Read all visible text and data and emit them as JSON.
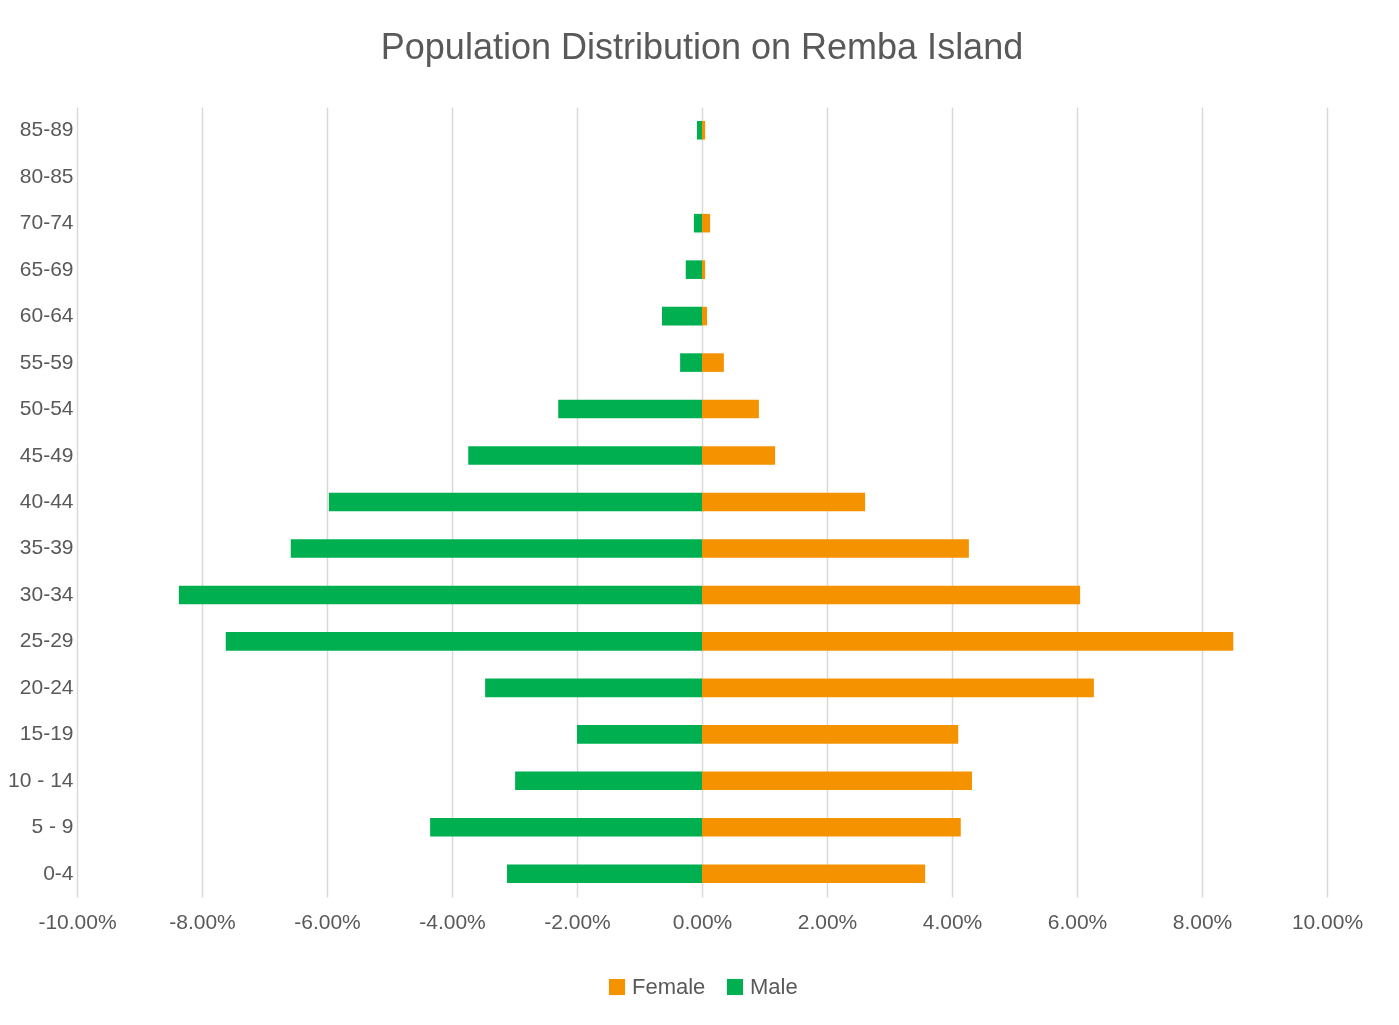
{
  "chart_data": {
    "type": "bar",
    "orientation": "horizontal",
    "stacked": true,
    "title": "Population Distribution on Remba Island",
    "categories": [
      "85-89",
      "80-85",
      "70-74",
      "65-69",
      "60-64",
      "55-59",
      "50-54",
      "45-49",
      "40-44",
      "35-39",
      "30-34",
      "25-29",
      "20-24",
      "15-19",
      "10 - 14",
      "5 - 9",
      "0-4"
    ],
    "series": [
      {
        "name": "Female",
        "color": "#f59200",
        "values": [
          0.05,
          0,
          0.13,
          0.05,
          0.08,
          0.35,
          0.91,
          1.17,
          2.61,
          4.27,
          6.05,
          8.5,
          6.27,
          4.1,
          4.32,
          4.14,
          3.57
        ]
      },
      {
        "name": "Male",
        "color": "#00b050",
        "values": [
          -0.08,
          0,
          -0.13,
          -0.26,
          -0.64,
          -0.35,
          -2.3,
          -3.74,
          -5.97,
          -6.58,
          -8.37,
          -7.62,
          -3.47,
          -2.0,
          -2.99,
          -4.35,
          -3.12
        ]
      }
    ],
    "xlim": [
      -10,
      10
    ],
    "xticks": [
      {
        "value": -10,
        "label": "-10.00%"
      },
      {
        "value": -8,
        "label": "-8.00%"
      },
      {
        "value": -6,
        "label": "-6.00%"
      },
      {
        "value": -4,
        "label": "-4.00%"
      },
      {
        "value": -2,
        "label": "-2.00%"
      },
      {
        "value": 0,
        "label": "0.00%"
      },
      {
        "value": 2,
        "label": "2.00%"
      },
      {
        "value": 4,
        "label": "4.00%"
      },
      {
        "value": 6,
        "label": "6.00%"
      },
      {
        "value": 8,
        "label": "8.00%"
      },
      {
        "value": 10,
        "label": "10.00%"
      }
    ],
    "grid": "x",
    "legend": "bottom"
  }
}
